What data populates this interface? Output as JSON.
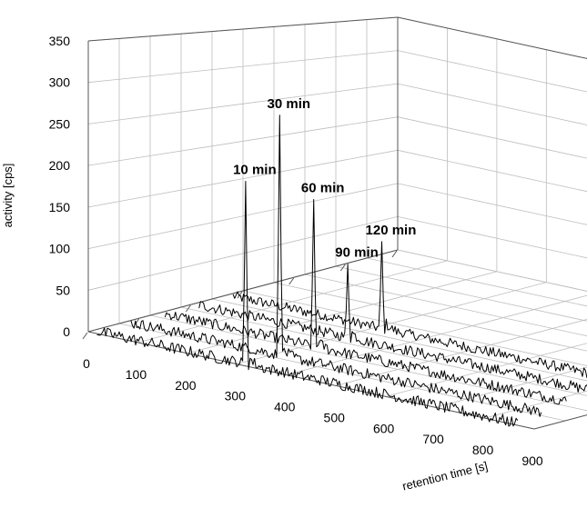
{
  "chart_data": {
    "type": "line",
    "variant": "3d-waterfall",
    "title": "",
    "xlabel": "retention time [s]",
    "ylabel": "activity [cps]",
    "xlim": [
      0,
      900
    ],
    "ylim": [
      0,
      350
    ],
    "x_ticks": [
      "0",
      "100",
      "200",
      "300",
      "400",
      "500",
      "600",
      "700",
      "800",
      "900"
    ],
    "y_ticks": [
      "0",
      "50",
      "100",
      "150",
      "200",
      "250",
      "300",
      "350"
    ],
    "grid": true,
    "series": [
      {
        "name": "120 min",
        "peak_x": 330,
        "peak_y": 120,
        "baseline": 4
      },
      {
        "name": "90 min",
        "peak_x": 330,
        "peak_y": 100,
        "baseline": 4
      },
      {
        "name": "60 min",
        "peak_x": 330,
        "peak_y": 190,
        "baseline": 4
      },
      {
        "name": "30 min",
        "peak_x": 330,
        "peak_y": 300,
        "baseline": 4
      },
      {
        "name": "10 min",
        "peak_x": 330,
        "peak_y": 225,
        "baseline": 4
      }
    ],
    "colors": {
      "trace": "#000000",
      "grid": "#bdbdbd"
    }
  }
}
